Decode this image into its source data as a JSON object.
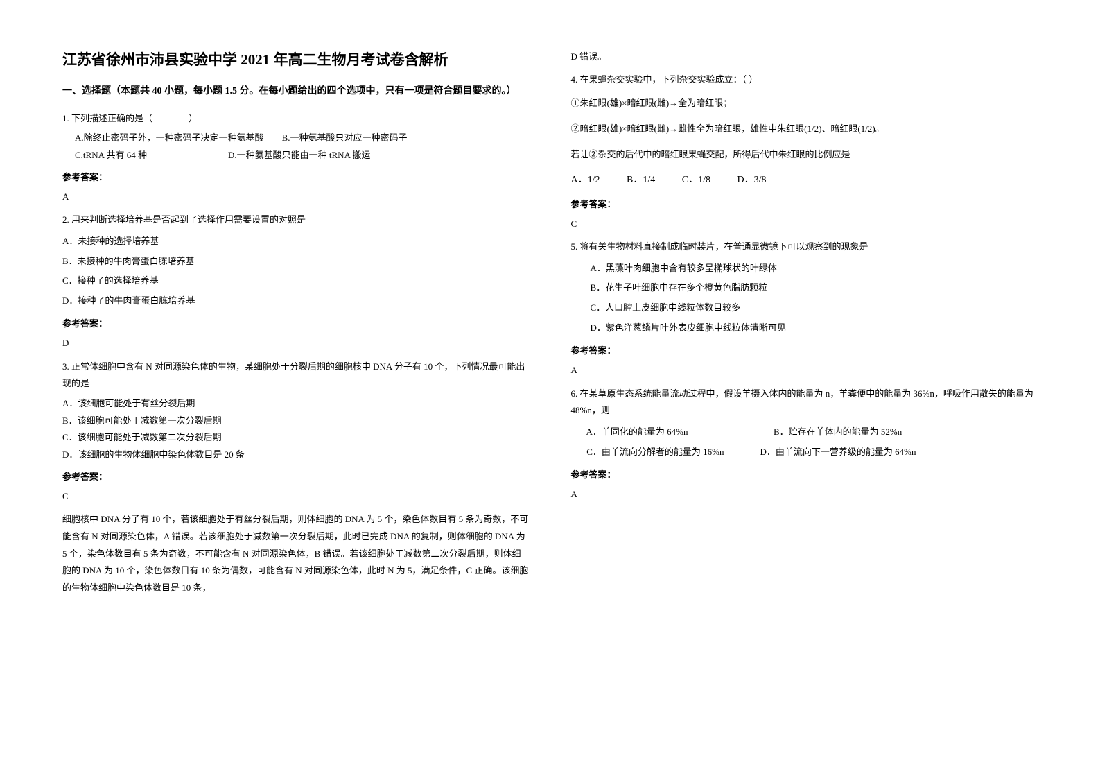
{
  "title": "江苏省徐州市沛县实验中学 2021 年高二生物月考试卷含解析",
  "section1_header": "一、选择题（本题共 40 小题，每小题 1.5 分。在每小题给出的四个选项中，只有一项是符合题目要求的。）",
  "q1": {
    "num": "1.",
    "text": "下列描述正确的是（　　　　）",
    "optA": "A.除终止密码子外，一种密码子决定一种氨基酸",
    "optB": "B.一种氨基酸只对应一种密码子",
    "optC": "C.tRNA 共有 64 种",
    "optD": "D.一种氨基酸只能由一种 tRNA 搬运"
  },
  "answer_label": "参考答案：",
  "q1_answer": "A",
  "q2": {
    "num": "2.",
    "text": "用来判断选择培养基是否起到了选择作用需要设置的对照是",
    "optA": "A．未接种的选择培养基",
    "optB": "B．未接种的牛肉膏蛋白胨培养基",
    "optC": "C．接种了的选择培养基",
    "optD": "D．接种了的牛肉膏蛋白胨培养基"
  },
  "q2_answer": "D",
  "q3": {
    "num": "3.",
    "text": "正常体细胞中含有 N 对同源染色体的生物，某细胞处于分裂后期的细胞核中 DNA 分子有 10 个，下列情况最可能出现的是",
    "optA": "A．该细胞可能处于有丝分裂后期",
    "optB": "B．该细胞可能处于减数第一次分裂后期",
    "optC": "C．该细胞可能处于减数第二次分裂后期",
    "optD": "D．该细胞的生物体细胞中染色体数目是 20 条"
  },
  "q3_answer": "C",
  "q3_explanation": "细胞核中 DNA 分子有 10 个，若该细胞处于有丝分裂后期，则体细胞的 DNA 为 5 个，染色体数目有 5 条为奇数，不可能含有 N 对同源染色体，A 错误。若该细胞处于减数第一次分裂后期，此时已完成 DNA 的复制，则体细胞的 DNA 为 5 个，染色体数目有 5 条为奇数，不可能含有 N 对同源染色体，B 错误。若该细胞处于减数第二次分裂后期，则体细胞的 DNA 为 10 个，染色体数目有 10 条为偶数，可能含有 N 对同源染色体，此时 N 为 5，满足条件，C 正确。该细胞的生物体细胞中染色体数目是 10 条，",
  "col2_top": "D 错误。",
  "q4": {
    "num": "4.",
    "text": "在果蝇杂交实验中，下列杂交实验成立：（ ）",
    "sub1": "①朱红眼(雄)×暗红眼(雌)→全为暗红眼；",
    "sub2": "②暗红眼(雄)×暗红眼(雌)→雌性全为暗红眼，雄性中朱红眼(1/2)、暗红眼(1/2)。",
    "sub3": "若让②杂交的后代中的暗红眼果蝇交配，所得后代中朱红眼的比例应是",
    "optA": "A．1/2",
    "optB": "B．1/4",
    "optC": "C．1/8",
    "optD": "D．3/8"
  },
  "q4_answer": "C",
  "q5": {
    "num": "5.",
    "text": "将有关生物材料直接制成临时装片，在普通显微镜下可以观察到的现象是",
    "optA": "A．黑藻叶肉细胞中含有较多呈椭球状的叶绿体",
    "optB": "B．花生子叶细胞中存在多个橙黄色脂肪颗粒",
    "optC": "C．人口腔上皮细胞中线粒体数目较多",
    "optD": "D．紫色洋葱鳞片叶外表皮细胞中线粒体清晰可见"
  },
  "q5_answer": "A",
  "q6": {
    "num": "6.",
    "text": "在某草原生态系统能量流动过程中，假设羊摄入体内的能量为 n，羊粪便中的能量为 36%n，呼吸作用散失的能量为 48%n，则",
    "optA": "A．羊同化的能量为 64%n",
    "optB": "B．贮存在羊体内的能量为 52%n",
    "optC": "C．由羊流向分解者的能量为 16%n",
    "optD": "D．由羊流向下一营养级的能量为 64%n"
  },
  "q6_answer": "A"
}
